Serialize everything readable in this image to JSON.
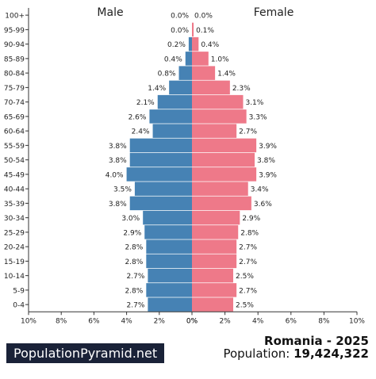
{
  "chart_data": {
    "type": "bar",
    "orientation": "horizontal-butterfly",
    "title": "Romania - 2025",
    "categories": [
      "100+",
      "95-99",
      "90-94",
      "85-89",
      "80-84",
      "75-79",
      "70-74",
      "65-69",
      "60-64",
      "55-59",
      "50-54",
      "45-49",
      "40-44",
      "35-39",
      "30-34",
      "25-29",
      "20-24",
      "15-19",
      "10-14",
      "5-9",
      "0-4"
    ],
    "series": [
      {
        "name": "Male",
        "color": "#4682b4",
        "values": [
          0.0,
          0.0,
          0.2,
          0.4,
          0.8,
          1.4,
          2.1,
          2.6,
          2.4,
          3.8,
          3.8,
          4.0,
          3.5,
          3.8,
          3.0,
          2.9,
          2.8,
          2.8,
          2.7,
          2.8,
          2.7
        ],
        "labels": [
          "0.0%",
          "0.0%",
          "0.2%",
          "0.4%",
          "0.8%",
          "1.4%",
          "2.1%",
          "2.6%",
          "2.4%",
          "3.8%",
          "3.8%",
          "4.0%",
          "3.5%",
          "3.8%",
          "3.0%",
          "2.9%",
          "2.8%",
          "2.8%",
          "2.7%",
          "2.8%",
          "2.7%"
        ]
      },
      {
        "name": "Female",
        "color": "#ee7989",
        "values": [
          0.0,
          0.1,
          0.4,
          1.0,
          1.4,
          2.3,
          3.1,
          3.3,
          2.7,
          3.9,
          3.8,
          3.9,
          3.4,
          3.6,
          2.9,
          2.8,
          2.7,
          2.7,
          2.5,
          2.7,
          2.5
        ],
        "labels": [
          "0.0%",
          "0.1%",
          "0.4%",
          "1.0%",
          "1.4%",
          "2.3%",
          "3.1%",
          "3.3%",
          "2.7%",
          "3.9%",
          "3.8%",
          "3.9%",
          "3.4%",
          "3.6%",
          "2.9%",
          "2.8%",
          "2.7%",
          "2.7%",
          "2.5%",
          "2.7%",
          "2.5%"
        ]
      }
    ],
    "xlim": [
      0,
      10
    ],
    "x_ticks_left": [
      "10%",
      "8%",
      "6%",
      "4%",
      "2%",
      "0%"
    ],
    "x_ticks_right": [
      "0%",
      "2%",
      "4%",
      "6%",
      "8%",
      "10%"
    ],
    "grid": false
  },
  "header": {
    "male_label": "Male",
    "female_label": "Female"
  },
  "footer": {
    "brand": "PopulationPyramid.net",
    "country_year": "Romania - 2025",
    "population_label": "Population: ",
    "population_value": "19,424,322"
  }
}
